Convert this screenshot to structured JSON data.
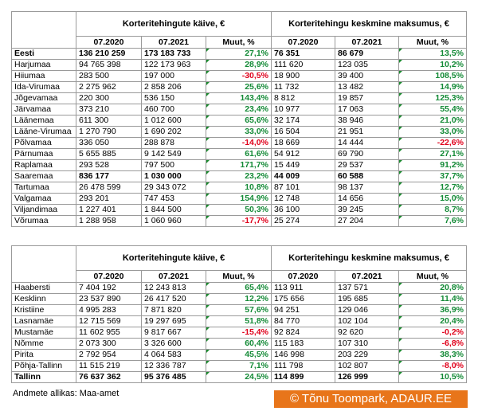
{
  "tables": [
    {
      "headers": [
        "Korteritehingute käive, €",
        "Korteritehingu keskmine maksumus, €"
      ],
      "subheaders": [
        "07.2020",
        "07.2021",
        "Muut, %",
        "07.2020",
        "07.2021",
        "Muut, %"
      ],
      "rows": [
        {
          "cells": [
            "Eesti",
            "136 210 259",
            "173 183 733",
            "27,1%",
            "76 351",
            "86 679",
            "13,5%"
          ],
          "bold": true
        },
        {
          "cells": [
            "Harjumaa",
            "94 765 398",
            "122 173 963",
            "28,9%",
            "111 620",
            "123 035",
            "10,2%"
          ]
        },
        {
          "cells": [
            "Hiiumaa",
            "283 500",
            "197 000",
            "-30,5%",
            "18 900",
            "39 400",
            "108,5%"
          ]
        },
        {
          "cells": [
            "Ida-Virumaa",
            "2 275 962",
            "2 858 206",
            "25,6%",
            "11 732",
            "13 482",
            "14,9%"
          ]
        },
        {
          "cells": [
            "Jõgevamaa",
            "220 300",
            "536 150",
            "143,4%",
            "8 812",
            "19 857",
            "125,3%"
          ]
        },
        {
          "cells": [
            "Järvamaa",
            "373 210",
            "460 700",
            "23,4%",
            "10 977",
            "17 063",
            "55,4%"
          ]
        },
        {
          "cells": [
            "Läänemaa",
            "611 300",
            "1 012 600",
            "65,6%",
            "32 174",
            "38 946",
            "21,0%"
          ]
        },
        {
          "cells": [
            "Lääne-Virumaa",
            "1 270 790",
            "1 690 202",
            "33,0%",
            "16 504",
            "21 951",
            "33,0%"
          ]
        },
        {
          "cells": [
            "Põlvamaa",
            "336 050",
            "288 878",
            "-14,0%",
            "18 669",
            "14 444",
            "-22,6%"
          ]
        },
        {
          "cells": [
            "Pärnumaa",
            "5 655 885",
            "9 142 549",
            "61,6%",
            "54 912",
            "69 790",
            "27,1%"
          ]
        },
        {
          "cells": [
            "Raplamaa",
            "293 528",
            "797 500",
            "171,7%",
            "15 449",
            "29 537",
            "91,2%"
          ]
        },
        {
          "cells": [
            "Saaremaa",
            "836 177",
            "1 030 000",
            "23,2%",
            "44 009",
            "60 588",
            "37,7%"
          ],
          "bold_values": true
        },
        {
          "cells": [
            "Tartumaa",
            "26 478 599",
            "29 343 072",
            "10,8%",
            "87 101",
            "98 137",
            "12,7%"
          ]
        },
        {
          "cells": [
            "Valgamaa",
            "293 201",
            "747 453",
            "154,9%",
            "12 748",
            "14 656",
            "15,0%"
          ]
        },
        {
          "cells": [
            "Viljandimaa",
            "1 227 401",
            "1 844 500",
            "50,3%",
            "36 100",
            "39 245",
            "8,7%"
          ]
        },
        {
          "cells": [
            "Võrumaa",
            "1 288 958",
            "1 060 960",
            "-17,7%",
            "25 274",
            "27 204",
            "7,6%"
          ]
        }
      ]
    },
    {
      "headers": [
        "Korteritehingute käive, €",
        "Korteritehingu keskmine maksumus, €"
      ],
      "subheaders": [
        "07.2020",
        "07.2021",
        "Muut, %",
        "07.2020",
        "07.2021",
        "Muut, %"
      ],
      "rows": [
        {
          "cells": [
            "Haabersti",
            "7 404 192",
            "12 243 813",
            "65,4%",
            "113 911",
            "137 571",
            "20,8%"
          ]
        },
        {
          "cells": [
            "Kesklinn",
            "23 537 890",
            "26 417 520",
            "12,2%",
            "175 656",
            "195 685",
            "11,4%"
          ]
        },
        {
          "cells": [
            "Kristiine",
            "4 995 283",
            "7 871 820",
            "57,6%",
            "94 251",
            "129 046",
            "36,9%"
          ]
        },
        {
          "cells": [
            "Lasnamäe",
            "12 715 569",
            "19 297 695",
            "51,8%",
            "84 770",
            "102 104",
            "20,4%"
          ]
        },
        {
          "cells": [
            "Mustamäe",
            "11 602 955",
            "9 817 667",
            "-15,4%",
            "92 824",
            "92 620",
            "-0,2%"
          ]
        },
        {
          "cells": [
            "Nõmme",
            "2 073 300",
            "3 326 600",
            "60,4%",
            "115 183",
            "107 310",
            "-6,8%"
          ]
        },
        {
          "cells": [
            "Pirita",
            "2 792 954",
            "4 064 583",
            "45,5%",
            "146 998",
            "203 229",
            "38,3%"
          ]
        },
        {
          "cells": [
            "Põhja-Tallinn",
            "11 515 219",
            "12 336 787",
            "7,1%",
            "111 798",
            "102 807",
            "-8,0%"
          ]
        },
        {
          "cells": [
            "Tallinn",
            "76 637 362",
            "95 376 485",
            "24,5%",
            "114 899",
            "126 999",
            "10,5%"
          ],
          "bold": true
        }
      ]
    }
  ],
  "source": "Andmete allikas: Maa-amet",
  "credit": "© Tõnu Toompark, ADAUR.EE"
}
